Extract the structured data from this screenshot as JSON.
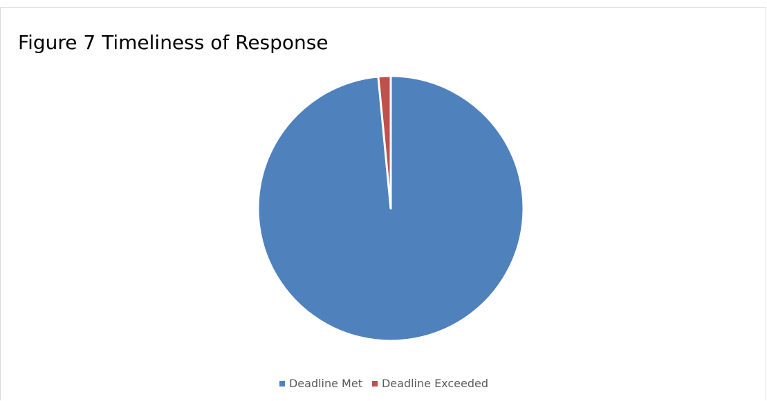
{
  "chart_data": {
    "type": "pie",
    "title": "Figure 7 Timeliness of Response",
    "categories": [
      "Deadline Met",
      "Deadline Exceeded"
    ],
    "values": [
      98.5,
      1.5
    ],
    "colors": [
      "#4f81bd",
      "#c0504d"
    ],
    "legend": "bottom",
    "grid": false
  }
}
